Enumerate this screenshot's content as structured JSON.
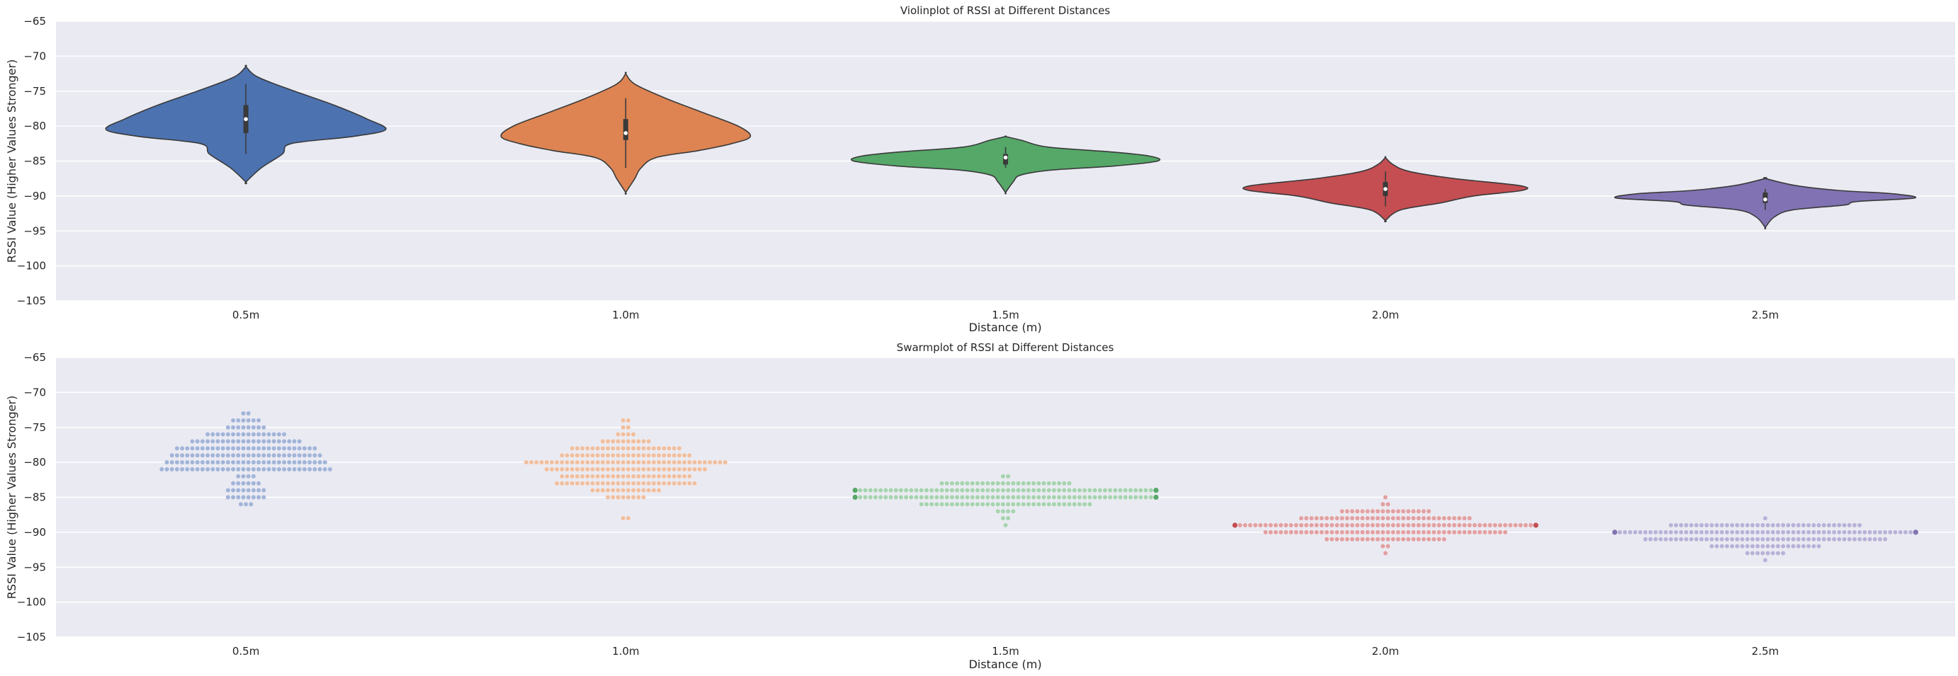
{
  "colors": {
    "panel_bg": "#eaeaf2",
    "grid": "#ffffff",
    "edge": "#3a3a3a",
    "series": [
      "#4c72b0",
      "#dd8452",
      "#55a868",
      "#c44e52",
      "#8172b3"
    ],
    "swarm": [
      "#a2b4d8",
      "#f0bf9f",
      "#a6d3b0",
      "#e2a0a2",
      "#b8b2d8"
    ]
  },
  "chart_data": [
    {
      "type": "violin",
      "title": "Violinplot of RSSI at Different Distances",
      "xlabel": "Distance (m)",
      "ylabel": "RSSI Value (Higher Values Stronger)",
      "categories": [
        "0.5m",
        "1.0m",
        "1.5m",
        "2.0m",
        "2.5m"
      ],
      "ylim": [
        -105,
        -65
      ],
      "yticks": [
        -65,
        -70,
        -75,
        -80,
        -85,
        -90,
        -95,
        -100,
        -105
      ],
      "grid": true,
      "violins": [
        {
          "category": "0.5m",
          "q1": -81,
          "median": -79,
          "q3": -77,
          "wmin": -84,
          "wmax": -74,
          "profile": [
            [
              -71.5,
              0
            ],
            [
              -73,
              0.08
            ],
            [
              -75,
              0.32
            ],
            [
              -77,
              0.58
            ],
            [
              -79,
              0.8
            ],
            [
              -80.5,
              0.92
            ],
            [
              -81.5,
              0.7
            ],
            [
              -82.5,
              0.3
            ],
            [
              -84,
              0.24
            ],
            [
              -86,
              0.1
            ],
            [
              -88,
              0
            ]
          ]
        },
        {
          "category": "1.0m",
          "q1": -82,
          "median": -81,
          "q3": -79,
          "wmin": -86,
          "wmax": -76,
          "profile": [
            [
              -72.5,
              0
            ],
            [
              -74,
              0.06
            ],
            [
              -76,
              0.26
            ],
            [
              -78,
              0.5
            ],
            [
              -80,
              0.74
            ],
            [
              -81.5,
              0.82
            ],
            [
              -82.5,
              0.7
            ],
            [
              -83.5,
              0.48
            ],
            [
              -84.5,
              0.2
            ],
            [
              -86,
              0.1
            ],
            [
              -87.5,
              0.06
            ],
            [
              -89.5,
              0
            ]
          ]
        },
        {
          "category": "1.5m",
          "q1": -85.5,
          "median": -84.5,
          "q3": -84,
          "wmin": -86,
          "wmax": -83,
          "profile": [
            [
              -81.5,
              0
            ],
            [
              -82,
              0.1
            ],
            [
              -83,
              0.28
            ],
            [
              -83.7,
              0.7
            ],
            [
              -84.3,
              0.95
            ],
            [
              -85,
              1.0
            ],
            [
              -85.7,
              0.72
            ],
            [
              -86.3,
              0.3
            ],
            [
              -87,
              0.1
            ],
            [
              -88,
              0.05
            ],
            [
              -89.5,
              0
            ]
          ]
        },
        {
          "category": "2.0m",
          "q1": -90,
          "median": -89,
          "q3": -88,
          "wmin": -91.5,
          "wmax": -86.5,
          "profile": [
            [
              -84.5,
              0
            ],
            [
              -85.5,
              0.05
            ],
            [
              -86.5,
              0.16
            ],
            [
              -87.5,
              0.45
            ],
            [
              -88.5,
              0.88
            ],
            [
              -89.2,
              0.9
            ],
            [
              -90,
              0.58
            ],
            [
              -91,
              0.36
            ],
            [
              -92,
              0.1
            ],
            [
              -93.5,
              0
            ]
          ]
        },
        {
          "category": "2.5m",
          "q1": -91,
          "median": -90.5,
          "q3": -89.5,
          "wmin": -92,
          "wmax": -89,
          "profile": [
            [
              -87.5,
              0
            ],
            [
              -88.5,
              0.2
            ],
            [
              -89.2,
              0.48
            ],
            [
              -89.7,
              0.85
            ],
            [
              -90.3,
              0.98
            ],
            [
              -90.8,
              0.6
            ],
            [
              -91.3,
              0.52
            ],
            [
              -92,
              0.18
            ],
            [
              -93,
              0.06
            ],
            [
              -94.5,
              0
            ]
          ]
        }
      ]
    },
    {
      "type": "swarm",
      "title": "Swarmplot of RSSI at Different Distances",
      "xlabel": "Distance (m)",
      "ylabel": "RSSI Value (Higher Values Stronger)",
      "categories": [
        "0.5m",
        "1.0m",
        "1.5m",
        "2.0m",
        "2.5m"
      ],
      "ylim": [
        -105,
        -65
      ],
      "yticks": [
        -65,
        -70,
        -75,
        -80,
        -85,
        -90,
        -95,
        -100,
        -105
      ],
      "grid": true,
      "swarms": [
        {
          "category": "0.5m",
          "counts_by_value": [
            [
              -73,
              2
            ],
            [
              -74,
              6
            ],
            [
              -75,
              8
            ],
            [
              -76,
              16
            ],
            [
              -77,
              22
            ],
            [
              -78,
              28
            ],
            [
              -79,
              30
            ],
            [
              -80,
              32
            ],
            [
              -81,
              34
            ],
            [
              -82,
              4
            ],
            [
              -83,
              6
            ],
            [
              -84,
              8
            ],
            [
              -85,
              8
            ],
            [
              -86,
              3
            ]
          ]
        },
        {
          "category": "1.0m",
          "counts_by_value": [
            [
              -74,
              2
            ],
            [
              -75,
              2
            ],
            [
              -76,
              4
            ],
            [
              -77,
              10
            ],
            [
              -78,
              22
            ],
            [
              -79,
              26
            ],
            [
              -80,
              40
            ],
            [
              -81,
              32
            ],
            [
              -82,
              26
            ],
            [
              -83,
              28
            ],
            [
              -84,
              14
            ],
            [
              -85,
              8
            ],
            [
              -88,
              2
            ]
          ]
        },
        {
          "category": "1.5m",
          "counts_by_value": [
            [
              -82,
              2
            ],
            [
              -83,
              26
            ],
            [
              -84,
              60
            ],
            [
              -85,
              60
            ],
            [
              -86,
              34
            ],
            [
              -87,
              4
            ],
            [
              -88,
              2
            ],
            [
              -89,
              1
            ]
          ]
        },
        {
          "category": "2.0m",
          "counts_by_value": [
            [
              -85,
              1
            ],
            [
              -86,
              2
            ],
            [
              -87,
              18
            ],
            [
              -88,
              34
            ],
            [
              -89,
              60
            ],
            [
              -90,
              48
            ],
            [
              -91,
              24
            ],
            [
              -92,
              2
            ],
            [
              -93,
              1
            ]
          ]
        },
        {
          "category": "2.5m",
          "counts_by_value": [
            [
              -88,
              1
            ],
            [
              -89,
              38
            ],
            [
              -90,
              60
            ],
            [
              -91,
              48
            ],
            [
              -92,
              22
            ],
            [
              -93,
              8
            ],
            [
              -94,
              1
            ]
          ]
        }
      ]
    }
  ]
}
